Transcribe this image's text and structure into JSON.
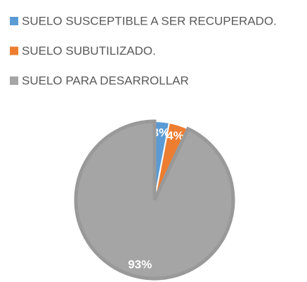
{
  "chart_data": {
    "type": "pie",
    "categories": [
      "SUELO SUSCEPTIBLE A SER RECUPERADO.",
      "SUELO SUBUTILIZADO.",
      "SUELO PARA DESARROLLAR"
    ],
    "values": [
      3,
      4,
      93
    ],
    "value_labels": [
      "3%",
      "4%",
      "93%"
    ],
    "colors": [
      "#5b9bd5",
      "#ed7d31",
      "#a5a5a5"
    ],
    "legend": "top"
  }
}
